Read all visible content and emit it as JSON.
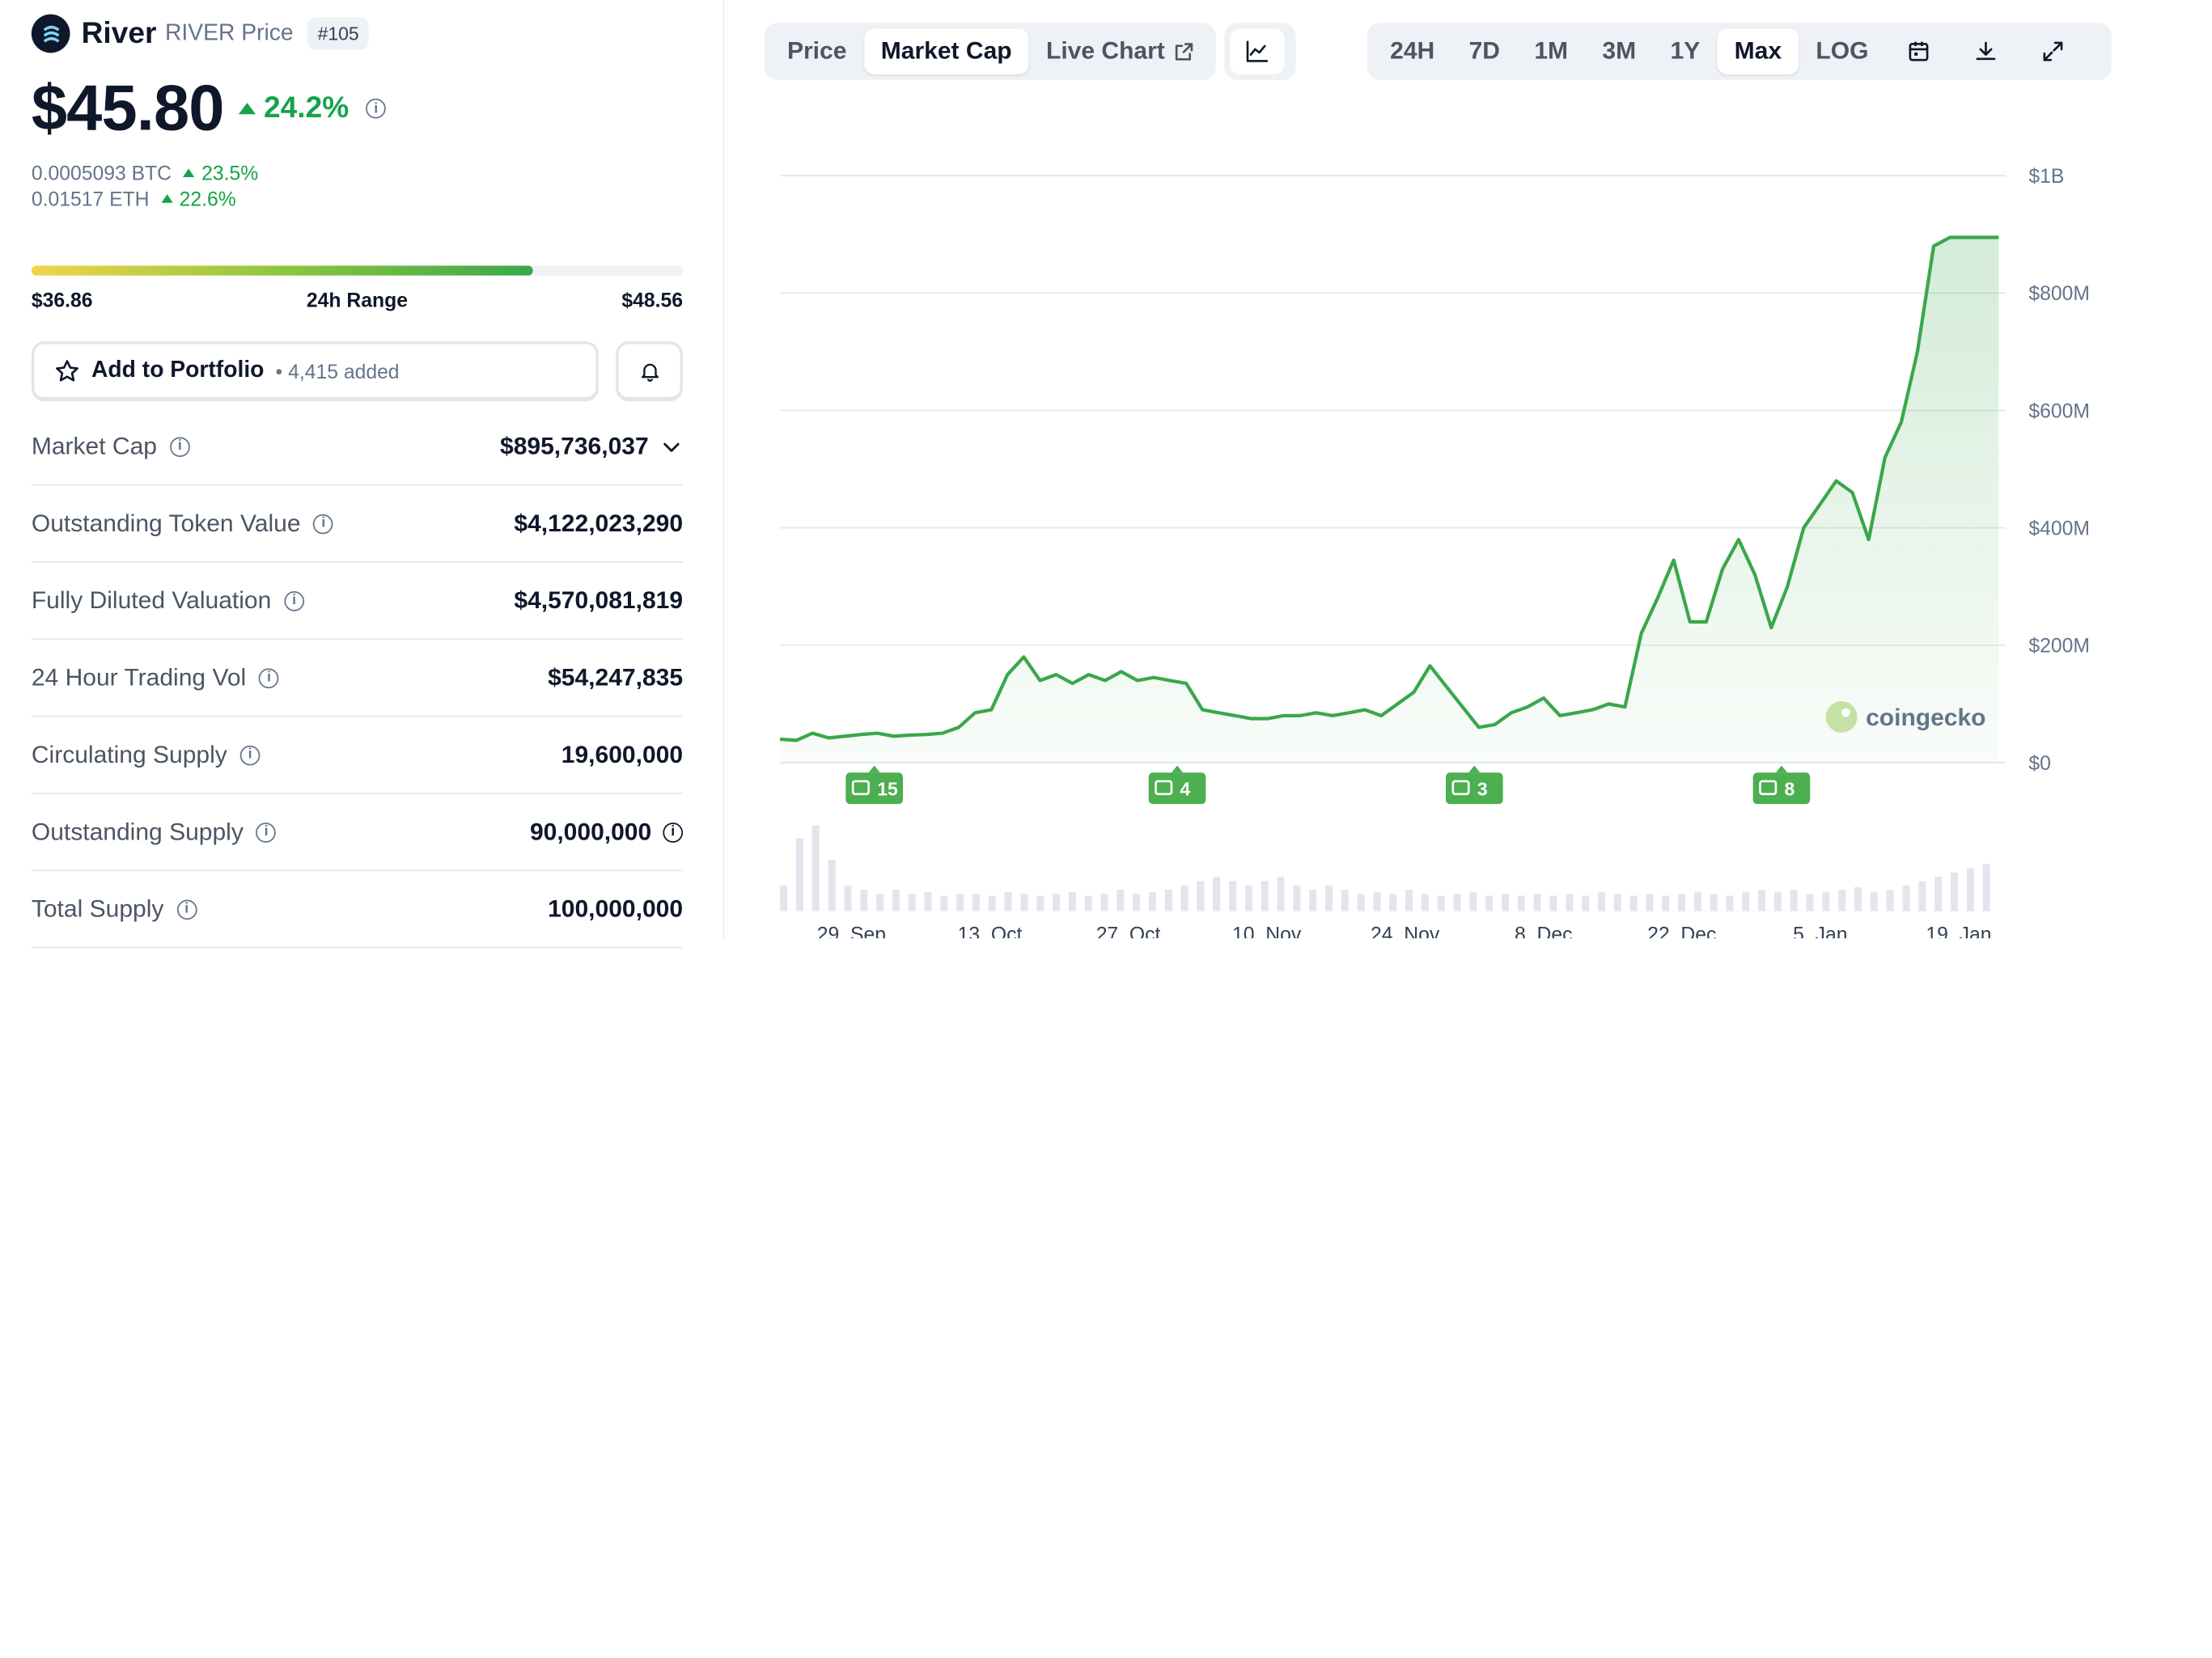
{
  "coin": {
    "name": "River",
    "symbol_label": "RIVER Price",
    "rank": "#105",
    "price": "$45.80",
    "change_24h": "24.2%",
    "btc_price": "0.0005093 BTC",
    "btc_change": "23.5%",
    "eth_price": "0.01517 ETH",
    "eth_change": "22.6%"
  },
  "range": {
    "low": "$36.86",
    "label": "24h Range",
    "high": "$48.56",
    "position_fraction": 0.77
  },
  "portfolio": {
    "button_label": "Add to Portfolio",
    "added_text": "4,415 added"
  },
  "stats": [
    {
      "label": "Market Cap",
      "value": "$895,736,037",
      "has_dropdown": true
    },
    {
      "label": "Outstanding Token Value",
      "value": "$4,122,023,290"
    },
    {
      "label": "Fully Diluted Valuation",
      "value": "$4,570,081,819"
    },
    {
      "label": "24 Hour Trading Vol",
      "value": "$54,247,835"
    },
    {
      "label": "Circulating Supply",
      "value": "19,600,000"
    },
    {
      "label": "Outstanding Supply",
      "value": "90,000,000",
      "has_info_after": true
    },
    {
      "label": "Total Supply",
      "value": "100,000,000"
    }
  ],
  "chart_tabs": {
    "price": "Price",
    "market_cap": "Market Cap",
    "live_chart": "Live Chart",
    "active": "Market Cap"
  },
  "ranges": {
    "items": [
      "24H",
      "7D",
      "1M",
      "3M",
      "1Y",
      "Max",
      "LOG"
    ],
    "active": "Max"
  },
  "icons": {
    "line_chart": "line-chart-icon",
    "calendar": "calendar-icon",
    "download": "download-icon",
    "fullscreen": "expand-icon",
    "external": "external-link-icon"
  },
  "colors": {
    "up": "#16a34a",
    "line": "#3aa74b",
    "news_badge": "#4caf50",
    "volume": "#e2e6ec"
  },
  "watermark": "coingecko",
  "chart_data": {
    "type": "area",
    "title": "",
    "x": [
      "22 Sep",
      "24 Sep",
      "26 Sep",
      "28 Sep",
      "30 Sep",
      "2 Oct",
      "4 Oct",
      "6 Oct",
      "8 Oct",
      "10 Oct",
      "12 Oct",
      "14 Oct",
      "16 Oct",
      "18 Oct",
      "20 Oct",
      "22 Oct",
      "24 Oct",
      "25 Oct",
      "26 Oct",
      "28 Oct",
      "30 Oct",
      "1 Nov",
      "3 Nov",
      "5 Nov",
      "7 Nov",
      "9 Nov",
      "11 Nov",
      "13 Nov",
      "15 Nov",
      "17 Nov",
      "19 Nov",
      "21 Nov",
      "23 Nov",
      "25 Nov",
      "27 Nov",
      "29 Nov",
      "1 Dec",
      "3 Dec",
      "5 Dec",
      "7 Dec",
      "9 Dec",
      "10 Dec",
      "11 Dec",
      "13 Dec",
      "15 Dec",
      "17 Dec",
      "19 Dec",
      "21 Dec",
      "23 Dec",
      "25 Dec",
      "27 Dec",
      "29 Dec",
      "30 Dec",
      "31 Dec",
      "1 Jan",
      "2 Jan",
      "3 Jan",
      "4 Jan",
      "5 Jan",
      "6 Jan",
      "7 Jan",
      "8 Jan",
      "9 Jan",
      "10 Jan",
      "11 Jan",
      "12 Jan",
      "13 Jan",
      "14 Jan",
      "15 Jan",
      "16 Jan",
      "17 Jan",
      "18 Jan",
      "19 Jan",
      "20 Jan",
      "21 Jan",
      "22 Jan"
    ],
    "series": [
      {
        "values": [
          40,
          38,
          50,
          42,
          45,
          48,
          50,
          45,
          47,
          48,
          50,
          60,
          85,
          90,
          150,
          180,
          140,
          150,
          135,
          150,
          140,
          155,
          140,
          145,
          140,
          135,
          90,
          85,
          80,
          75,
          75,
          80,
          80,
          85,
          80,
          85,
          90,
          80,
          100,
          120,
          165,
          130,
          95,
          60,
          65,
          85,
          95,
          110,
          80,
          85,
          90,
          100,
          95,
          220,
          280,
          345,
          240,
          240,
          330,
          380,
          320,
          230,
          300,
          400,
          440,
          480,
          460,
          380,
          520,
          580,
          700,
          880,
          895,
          895,
          895,
          895
        ]
      }
    ],
    "ylim": [
      0,
      1000
    ],
    "yticks": [
      "$0",
      "$200M",
      "$400M",
      "$600M",
      "$800M",
      "$1B"
    ],
    "xticks": [
      "29. Sep",
      "13. Oct",
      "27. Oct",
      "10. Nov",
      "24. Nov",
      "8. Dec",
      "22. Dec",
      "5. Jan",
      "19. Jan"
    ],
    "news_markers": [
      "15",
      "4",
      "3",
      "8"
    ],
    "volume": [
      0.3,
      0.85,
      1.0,
      0.6,
      0.3,
      0.25,
      0.2,
      0.25,
      0.2,
      0.22,
      0.18,
      0.2,
      0.2,
      0.18,
      0.22,
      0.2,
      0.18,
      0.2,
      0.22,
      0.18,
      0.2,
      0.25,
      0.2,
      0.22,
      0.25,
      0.3,
      0.35,
      0.4,
      0.35,
      0.3,
      0.35,
      0.4,
      0.3,
      0.25,
      0.3,
      0.25,
      0.2,
      0.22,
      0.2,
      0.25,
      0.2,
      0.18,
      0.2,
      0.22,
      0.18,
      0.2,
      0.18,
      0.2,
      0.18,
      0.2,
      0.18,
      0.22,
      0.2,
      0.18,
      0.2,
      0.18,
      0.2,
      0.22,
      0.2,
      0.18,
      0.22,
      0.25,
      0.22,
      0.25,
      0.2,
      0.22,
      0.25,
      0.28,
      0.22,
      0.25,
      0.3,
      0.35,
      0.4,
      0.45,
      0.5,
      0.55
    ],
    "grid": true,
    "legend": "none"
  }
}
